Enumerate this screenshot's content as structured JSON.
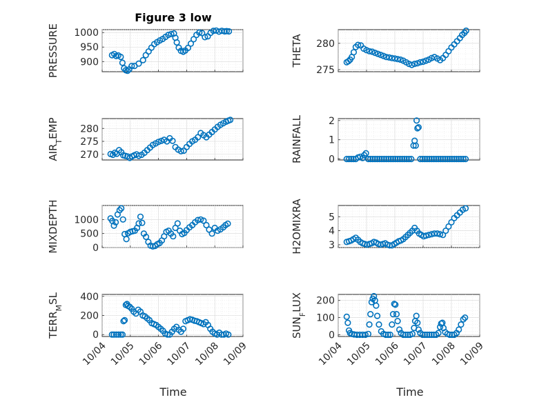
{
  "figure": {
    "title": "Figure 3 low",
    "marker_color": "#0072BD",
    "marker": "circle"
  },
  "chart_data": [
    {
      "type": "scatter",
      "ylabel": "PRESSURE",
      "title": "Figure 3 low",
      "xlim": [
        "10/04",
        "10/09"
      ],
      "ylim": [
        865,
        1010
      ],
      "yticks": [
        900,
        950,
        1000
      ],
      "ytick_labels": [
        "900",
        "950",
        "1000"
      ],
      "xticks": [
        "10/04",
        "10/05",
        "10/06",
        "10/07",
        "10/08",
        "10/09"
      ],
      "grid": true,
      "x": [
        4.35,
        4.43,
        4.5,
        4.57,
        4.66,
        4.72,
        4.78,
        4.84,
        4.9,
        4.96,
        5.05,
        5.15,
        5.3,
        5.45,
        5.55,
        5.65,
        5.75,
        5.85,
        5.95,
        6.05,
        6.15,
        6.25,
        6.35,
        6.45,
        6.55,
        6.6,
        6.65,
        6.72,
        6.8,
        6.88,
        6.95,
        7.05,
        7.15,
        7.25,
        7.35,
        7.45,
        7.55,
        7.65,
        7.75,
        7.85,
        7.95,
        8.05,
        8.15,
        8.25,
        8.35,
        8.42,
        8.5
      ],
      "y": [
        922,
        926,
        919,
        921,
        916,
        896,
        877,
        870,
        868,
        873,
        885,
        885,
        893,
        905,
        922,
        935,
        948,
        960,
        967,
        973,
        978,
        985,
        992,
        995,
        997,
        982,
        966,
        948,
        937,
        934,
        938,
        947,
        962,
        977,
        992,
        1000,
        998,
        984,
        987,
        999,
        1006,
        1007,
        1003,
        1006,
        1004,
        1005,
        1004
      ]
    },
    {
      "type": "scatter",
      "ylabel": "THETA",
      "xlim": [
        "10/04",
        "10/09"
      ],
      "ylim": [
        274.6,
        282.6
      ],
      "yticks": [
        275,
        280
      ],
      "ytick_labels": [
        "275",
        "280"
      ],
      "xticks": [
        "10/04",
        "10/05",
        "10/06",
        "10/07",
        "10/08",
        "10/09"
      ],
      "grid": true,
      "x": [
        4.3,
        4.36,
        4.42,
        4.48,
        4.55,
        4.62,
        4.7,
        4.8,
        4.9,
        5.0,
        5.1,
        5.2,
        5.3,
        5.4,
        5.5,
        5.6,
        5.7,
        5.8,
        5.9,
        6.0,
        6.1,
        6.2,
        6.3,
        6.4,
        6.5,
        6.6,
        6.7,
        6.8,
        6.9,
        7.0,
        7.1,
        7.2,
        7.3,
        7.4,
        7.5,
        7.6,
        7.7,
        7.8,
        7.9,
        8.0,
        8.1,
        8.2,
        8.3,
        8.38,
        8.46,
        8.52
      ],
      "y": [
        276.4,
        276.6,
        276.9,
        277.4,
        278.3,
        279.3,
        279.7,
        279.6,
        279.0,
        278.7,
        278.5,
        278.4,
        278.2,
        278.0,
        277.8,
        277.6,
        277.4,
        277.3,
        277.2,
        277.1,
        277.0,
        276.9,
        276.7,
        276.4,
        276.1,
        275.9,
        276.1,
        276.2,
        276.4,
        276.5,
        276.7,
        276.9,
        277.2,
        277.4,
        277.1,
        276.8,
        277.2,
        277.8,
        278.5,
        279.2,
        279.8,
        280.4,
        281.0,
        281.6,
        282.0,
        282.4
      ]
    },
    {
      "type": "scatter",
      "ylabel": "AIR_TEMP",
      "xlim": [
        "10/04",
        "10/09"
      ],
      "ylim": [
        267.8,
        283.8
      ],
      "yticks": [
        270,
        275,
        280
      ],
      "ytick_labels": [
        "270",
        "275",
        "280"
      ],
      "xticks": [
        "10/04",
        "10/05",
        "10/06",
        "10/07",
        "10/08",
        "10/09"
      ],
      "grid": true,
      "x": [
        4.3,
        4.38,
        4.45,
        4.52,
        4.6,
        4.68,
        4.75,
        4.82,
        4.9,
        4.98,
        5.06,
        5.14,
        5.22,
        5.3,
        5.4,
        5.5,
        5.6,
        5.7,
        5.8,
        5.9,
        6.0,
        6.1,
        6.2,
        6.3,
        6.4,
        6.5,
        6.6,
        6.7,
        6.8,
        6.9,
        7.0,
        7.1,
        7.2,
        7.3,
        7.4,
        7.5,
        7.6,
        7.7,
        7.8,
        7.9,
        8.0,
        8.1,
        8.2,
        8.3,
        8.4,
        8.48,
        8.55
      ],
      "y": [
        270.1,
        269.8,
        270.6,
        270.2,
        271.6,
        270.8,
        269.6,
        269.4,
        269.2,
        268.6,
        269.2,
        269.6,
        270.0,
        269.4,
        269.8,
        270.6,
        271.6,
        272.6,
        273.6,
        274.2,
        274.8,
        275.2,
        275.6,
        275.0,
        276.2,
        275.2,
        272.8,
        271.8,
        271.2,
        271.4,
        272.8,
        274.0,
        275.0,
        275.6,
        276.6,
        278.2,
        277.4,
        276.6,
        277.6,
        278.6,
        279.6,
        280.6,
        281.4,
        282.0,
        282.6,
        283.0,
        283.3
      ]
    },
    {
      "type": "scatter",
      "ylabel": "RAINFALL",
      "xlim": [
        "10/04",
        "10/09"
      ],
      "ylim": [
        -0.05,
        2.1
      ],
      "yticks": [
        0,
        1,
        2
      ],
      "ytick_labels": [
        "0",
        "1",
        "2"
      ],
      "xticks": [
        "10/04",
        "10/05",
        "10/06",
        "10/07",
        "10/08",
        "10/09"
      ],
      "grid": true,
      "x": [
        4.3,
        4.38,
        4.46,
        4.54,
        4.62,
        4.7,
        4.78,
        4.86,
        4.92,
        4.98,
        5.06,
        5.14,
        5.22,
        5.3,
        5.38,
        5.46,
        5.54,
        5.62,
        5.7,
        5.78,
        5.86,
        5.94,
        6.02,
        6.1,
        6.18,
        6.26,
        6.34,
        6.42,
        6.5,
        6.58,
        6.66,
        6.7,
        6.74,
        6.77,
        6.8,
        6.84,
        6.9,
        6.98,
        7.06,
        7.14,
        7.22,
        7.3,
        7.38,
        7.46,
        7.54,
        7.62,
        7.7,
        7.78,
        7.86,
        7.94,
        8.02,
        8.1,
        8.18,
        8.26,
        8.34,
        8.42,
        8.5
      ],
      "y": [
        0,
        0,
        0,
        0,
        0,
        0.08,
        0.12,
        0.05,
        0.2,
        0.3,
        0,
        0,
        0,
        0,
        0,
        0,
        0,
        0,
        0,
        0,
        0,
        0,
        0,
        0,
        0,
        0,
        0,
        0,
        0,
        0,
        0.7,
        0.95,
        0.7,
        2.0,
        1.6,
        1.65,
        0,
        0,
        0,
        0,
        0,
        0,
        0,
        0,
        0,
        0,
        0,
        0,
        0,
        0,
        0,
        0,
        0,
        0,
        0,
        0,
        0
      ]
    },
    {
      "type": "scatter",
      "ylabel": "MIXDEPTH",
      "xlim": [
        "10/04",
        "10/09"
      ],
      "ylim": [
        0,
        1500
      ],
      "yticks": [
        0,
        500,
        1000
      ],
      "ytick_labels": [
        "0",
        "500",
        "1000"
      ],
      "xticks": [
        "10/04",
        "10/05",
        "10/06",
        "10/07",
        "10/08",
        "10/09"
      ],
      "grid": true,
      "x": [
        4.3,
        4.36,
        4.42,
        4.48,
        4.55,
        4.62,
        4.68,
        4.74,
        4.8,
        4.86,
        4.92,
        5.0,
        5.08,
        5.16,
        5.24,
        5.3,
        5.36,
        5.42,
        5.48,
        5.56,
        5.64,
        5.72,
        5.8,
        5.88,
        5.96,
        6.04,
        6.12,
        6.2,
        6.28,
        6.36,
        6.44,
        6.52,
        6.6,
        6.68,
        6.76,
        6.84,
        6.92,
        7.0,
        7.1,
        7.2,
        7.3,
        7.4,
        7.5,
        7.6,
        7.7,
        7.8,
        7.9,
        8.0,
        8.1,
        8.2,
        8.3,
        8.38,
        8.46
      ],
      "y": [
        1040,
        950,
        780,
        900,
        1180,
        1330,
        1400,
        1000,
        480,
        300,
        510,
        560,
        580,
        600,
        700,
        860,
        1100,
        880,
        500,
        380,
        200,
        70,
        40,
        60,
        120,
        160,
        250,
        400,
        560,
        600,
        500,
        400,
        700,
        860,
        600,
        480,
        520,
        620,
        720,
        800,
        900,
        980,
        1000,
        960,
        800,
        640,
        500,
        700,
        600,
        650,
        720,
        800,
        850
      ]
    },
    {
      "type": "scatter",
      "ylabel": "H2OMIXRA",
      "xlim": [
        "10/04",
        "10/09"
      ],
      "ylim": [
        2.8,
        5.8
      ],
      "yticks": [
        3,
        4,
        5
      ],
      "ytick_labels": [
        "3",
        "4",
        "5"
      ],
      "xticks": [
        "10/04",
        "10/05",
        "10/06",
        "10/07",
        "10/08",
        "10/09"
      ],
      "grid": true,
      "x": [
        4.3,
        4.38,
        4.46,
        4.54,
        4.62,
        4.7,
        4.78,
        4.86,
        4.94,
        5.02,
        5.1,
        5.18,
        5.26,
        5.34,
        5.42,
        5.5,
        5.58,
        5.66,
        5.74,
        5.82,
        5.9,
        5.98,
        6.06,
        6.14,
        6.22,
        6.3,
        6.38,
        6.46,
        6.54,
        6.62,
        6.7,
        6.78,
        6.86,
        6.94,
        7.02,
        7.1,
        7.2,
        7.3,
        7.4,
        7.5,
        7.6,
        7.7,
        7.8,
        7.9,
        8.0,
        8.1,
        8.2,
        8.3,
        8.4,
        8.5
      ],
      "y": [
        3.2,
        3.25,
        3.3,
        3.4,
        3.5,
        3.35,
        3.2,
        3.1,
        3.05,
        3.0,
        3.05,
        3.1,
        3.2,
        3.15,
        3.05,
        3.0,
        3.05,
        3.1,
        3.0,
        2.95,
        2.95,
        3.05,
        3.15,
        3.25,
        3.3,
        3.4,
        3.55,
        3.7,
        3.85,
        4.0,
        4.2,
        4.0,
        3.8,
        3.7,
        3.6,
        3.65,
        3.7,
        3.75,
        3.8,
        3.8,
        3.75,
        3.7,
        4.0,
        4.3,
        4.6,
        4.9,
        5.1,
        5.3,
        5.5,
        5.6
      ]
    },
    {
      "type": "scatter",
      "ylabel": "TERR_MSL",
      "xlim": [
        "10/04",
        "10/09"
      ],
      "ylim": [
        -20,
        420
      ],
      "yticks": [
        0,
        200,
        400
      ],
      "ytick_labels": [
        "0",
        "200",
        "400"
      ],
      "xticks": [
        "10/04",
        "10/05",
        "10/06",
        "10/07",
        "10/08",
        "10/09"
      ],
      "grid": true,
      "x": [
        4.35,
        4.42,
        4.5,
        4.58,
        4.66,
        4.72,
        4.76,
        4.8,
        4.84,
        4.88,
        4.92,
        4.98,
        5.05,
        5.12,
        5.2,
        5.28,
        5.36,
        5.44,
        5.52,
        5.6,
        5.68,
        5.76,
        5.84,
        5.92,
        6.0,
        6.08,
        6.16,
        6.24,
        6.32,
        6.4,
        6.48,
        6.56,
        6.64,
        6.72,
        6.8,
        6.88,
        6.96,
        7.04,
        7.12,
        7.2,
        7.28,
        7.36,
        7.44,
        7.52,
        7.6,
        7.68,
        7.76,
        7.84,
        7.92,
        8.0,
        8.08,
        8.16,
        8.24,
        8.32,
        8.4,
        8.48
      ],
      "y": [
        0,
        0,
        0,
        0,
        0,
        0,
        140,
        150,
        310,
        320,
        300,
        290,
        270,
        240,
        220,
        260,
        240,
        200,
        190,
        170,
        150,
        120,
        110,
        100,
        80,
        60,
        40,
        10,
        0,
        0,
        30,
        60,
        80,
        50,
        30,
        60,
        140,
        150,
        160,
        155,
        145,
        140,
        130,
        120,
        110,
        130,
        100,
        60,
        30,
        10,
        0,
        20,
        0,
        0,
        10,
        0
      ]
    },
    {
      "type": "scatter",
      "ylabel": "SUN_FLUX",
      "xlim": [
        "10/04",
        "10/09"
      ],
      "ylim": [
        -10,
        235
      ],
      "yticks": [
        0,
        100,
        200
      ],
      "ytick_labels": [
        "0",
        "100",
        "200"
      ],
      "xticks": [
        "10/04",
        "10/05",
        "10/06",
        "10/07",
        "10/08",
        "10/09"
      ],
      "grid": true,
      "x": [
        4.3,
        4.34,
        4.38,
        4.42,
        4.48,
        4.56,
        4.66,
        4.76,
        4.86,
        4.96,
        5.06,
        5.1,
        5.14,
        5.18,
        5.22,
        5.26,
        5.3,
        5.34,
        5.38,
        5.44,
        5.52,
        5.6,
        5.68,
        5.76,
        5.84,
        5.9,
        5.94,
        5.98,
        6.02,
        6.06,
        6.1,
        6.16,
        6.22,
        6.3,
        6.38,
        6.46,
        6.54,
        6.62,
        6.68,
        6.72,
        6.76,
        6.8,
        6.84,
        6.9,
        6.98,
        7.06,
        7.14,
        7.22,
        7.3,
        7.38,
        7.46,
        7.54,
        7.6,
        7.64,
        7.68,
        7.72,
        7.78,
        7.86,
        7.94,
        8.02,
        8.1,
        8.18,
        8.26,
        8.34,
        8.42,
        8.48
      ],
      "y": [
        105,
        70,
        25,
        10,
        5,
        2,
        0,
        0,
        0,
        0,
        5,
        60,
        120,
        190,
        210,
        225,
        200,
        170,
        110,
        60,
        20,
        5,
        0,
        0,
        0,
        60,
        120,
        180,
        175,
        120,
        80,
        30,
        10,
        0,
        0,
        0,
        0,
        5,
        40,
        80,
        110,
        70,
        30,
        10,
        0,
        0,
        0,
        0,
        0,
        0,
        0,
        10,
        45,
        65,
        70,
        40,
        15,
        5,
        0,
        0,
        0,
        10,
        30,
        60,
        90,
        100
      ]
    }
  ]
}
